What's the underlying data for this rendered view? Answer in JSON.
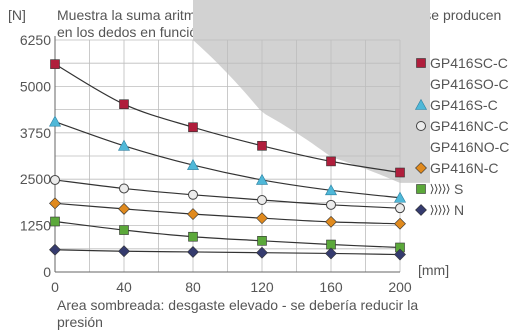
{
  "chart_data": {
    "type": "line",
    "title": "Muestra la suma aritmética de las fuerzas individuales que se producen en los dedos en función de la longitud de los dedos",
    "ylabel": "[N]",
    "xlabel": "[mm]",
    "xlim": [
      0,
      200
    ],
    "ylim": [
      0,
      6250
    ],
    "x_ticks": [
      "0",
      "40",
      "80",
      "120",
      "160",
      "200"
    ],
    "y_ticks": [
      "0",
      "1250",
      "2500",
      "3750",
      "5000",
      "6250"
    ],
    "grid": true,
    "legend_position": "right",
    "x": [
      0,
      40,
      80,
      120,
      160,
      200
    ],
    "series": [
      {
        "name": "GP416SC-C\nGP416SO-C",
        "color": "#b01e3c",
        "marker": "square",
        "values": [
          5600,
          4520,
          3900,
          3400,
          2980,
          2680
        ]
      },
      {
        "name": "GP416S-C",
        "color": "#4fb8d8",
        "marker": "triangle",
        "values": [
          4050,
          3400,
          2880,
          2480,
          2200,
          2000
        ]
      },
      {
        "name": "GP416NC-C\nGP416NO-C",
        "color": "#ececec",
        "marker": "circle",
        "values": [
          2480,
          2250,
          2080,
          1940,
          1810,
          1720
        ]
      },
      {
        "name": "GP416N-C",
        "color": "#e08a1e",
        "marker": "diamond",
        "values": [
          1850,
          1700,
          1560,
          1450,
          1350,
          1300
        ]
      },
      {
        "name": "S",
        "color": "#5ba83a",
        "marker": "square",
        "gripper_icon": true,
        "values": [
          1360,
          1130,
          950,
          840,
          740,
          660
        ]
      },
      {
        "name": "N",
        "color": "#353b6e",
        "marker": "diamond",
        "gripper_icon": true,
        "values": [
          600,
          560,
          540,
          520,
          500,
          470
        ]
      }
    ],
    "shaded_region_boundary": {
      "x": [
        80,
        120,
        160,
        200
      ],
      "y": [
        6250,
        4300,
        3100,
        2400
      ]
    },
    "annotation": "Area sombreada: desgaste elevado - se debería reducir la presión"
  }
}
